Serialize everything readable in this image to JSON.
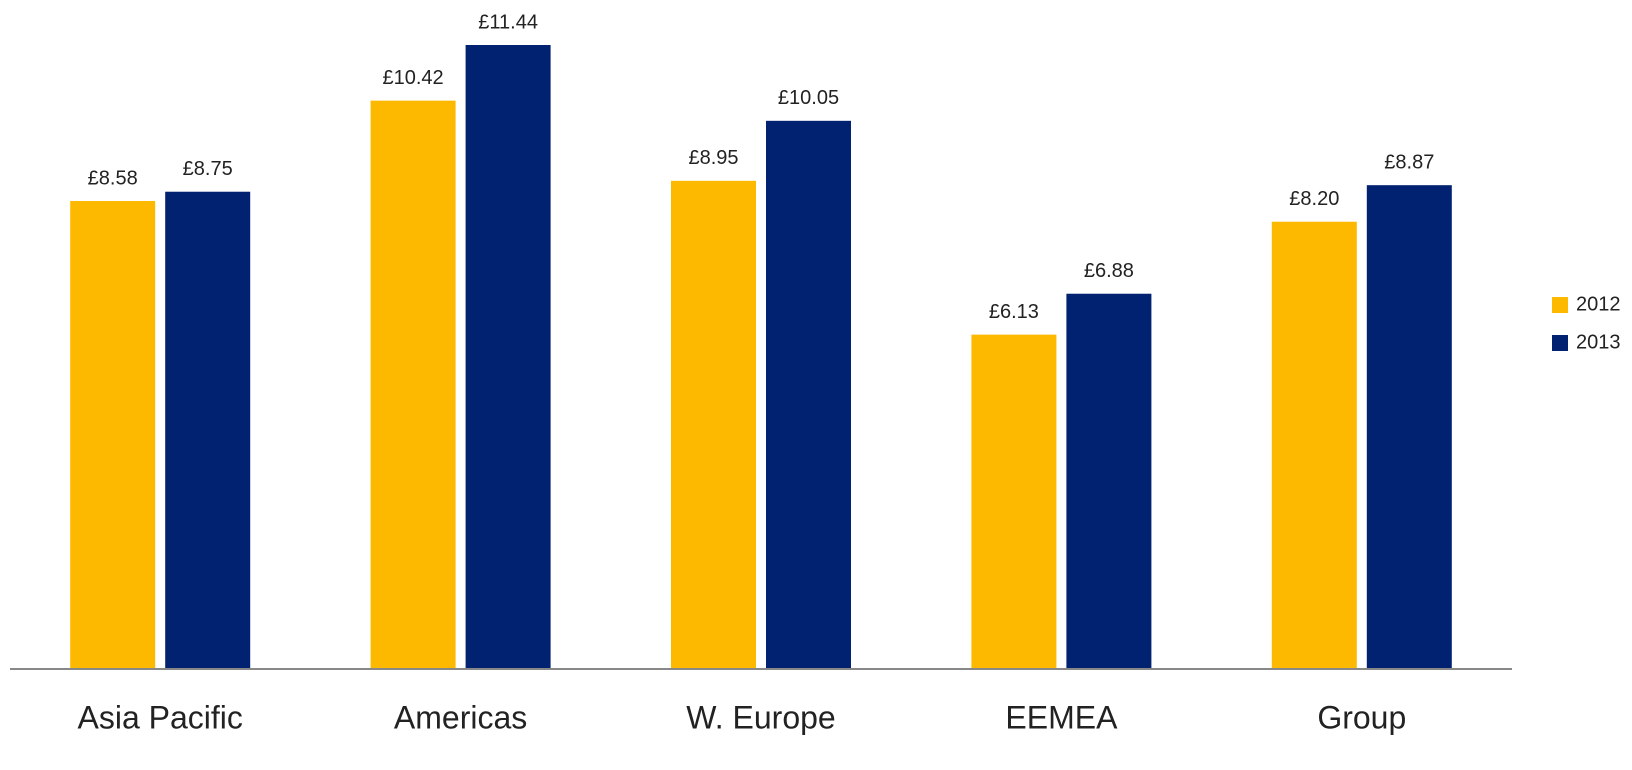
{
  "chart_data": {
    "type": "bar",
    "categories": [
      "Asia Pacific",
      "Americas",
      "W. Europe",
      "EEMEA",
      "Group"
    ],
    "series": [
      {
        "name": "2012",
        "color": "#fdb900",
        "values": [
          8.58,
          10.42,
          8.95,
          6.13,
          8.2
        ],
        "value_labels": [
          "£8.58",
          "£10.42",
          "£8.95",
          "£6.13",
          "£8.20"
        ]
      },
      {
        "name": "2013",
        "color": "#002270",
        "values": [
          8.75,
          11.44,
          10.05,
          6.88,
          8.87
        ],
        "value_labels": [
          "£8.75",
          "£11.44",
          "£10.05",
          "£6.88",
          "£8.87"
        ]
      }
    ],
    "legend": "right"
  }
}
